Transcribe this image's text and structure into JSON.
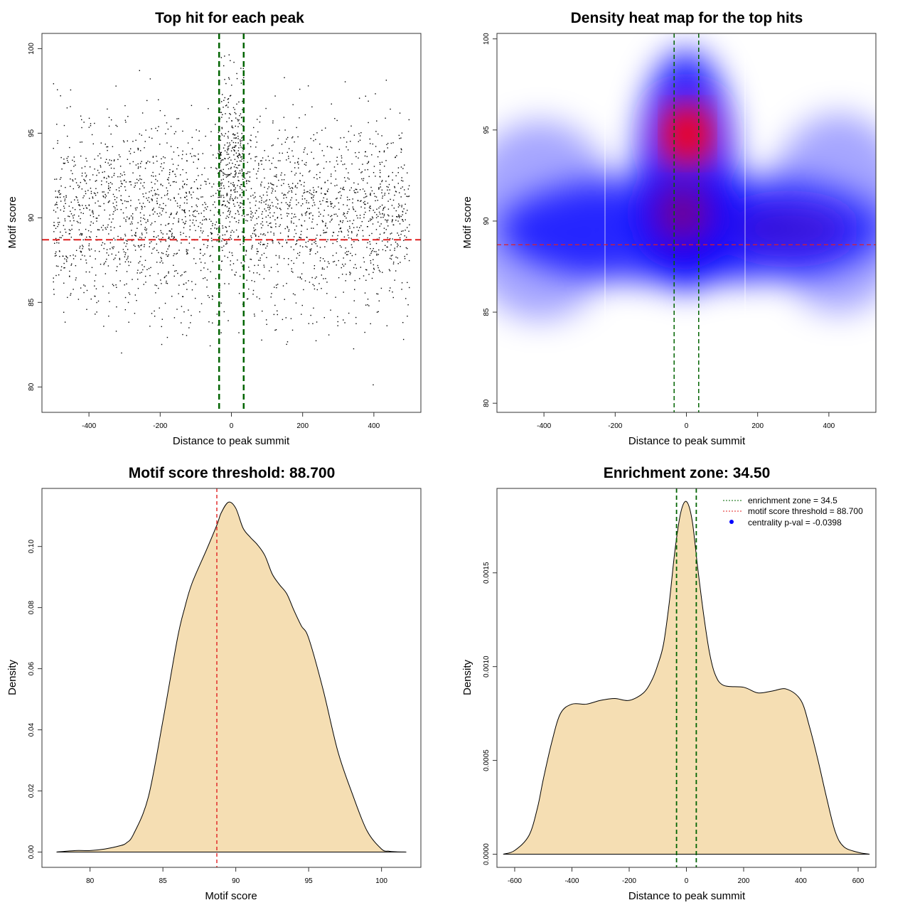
{
  "chart_data": [
    {
      "type": "scatter",
      "title": "Top hit for each peak",
      "xlabel": "Distance to peak summit",
      "ylabel": "Motif score",
      "xlim": [
        -532,
        532
      ],
      "ylim": [
        78.5,
        100.9
      ],
      "xticks": [
        -400,
        -200,
        0,
        200,
        400
      ],
      "yticks": [
        80,
        85,
        90,
        95,
        100
      ],
      "n_points": 2800,
      "points_note_x_range": [
        -500,
        500
      ],
      "points_note_y_range": [
        79,
        100
      ],
      "central_enrichment_x_range": [
        -35,
        35
      ],
      "vlines": [
        -34.5,
        34.5
      ],
      "hline": 88.7,
      "colors": {
        "points": "#000000",
        "vline": "#006400",
        "hline": "#e02020"
      }
    },
    {
      "type": "heatmap",
      "title": "Density heat map for the top hits",
      "xlabel": "Distance to peak summit",
      "ylabel": "Motif score",
      "xlim": [
        -532,
        532
      ],
      "ylim": [
        79.5,
        100.3
      ],
      "xticks": [
        -400,
        -200,
        0,
        200,
        400
      ],
      "yticks": [
        80,
        85,
        90,
        95,
        100
      ],
      "hotspots": [
        {
          "x": 5,
          "y": 94.6,
          "level": "max"
        },
        {
          "x": 0,
          "y": 89.5,
          "level": "high"
        }
      ],
      "vlines": [
        -34.5,
        34.5
      ],
      "hline": 88.7,
      "colors": {
        "low": "#ffffff",
        "mid": "#0000ff",
        "high": "#ff0000",
        "vline": "#006400",
        "hline": "#e02020"
      }
    },
    {
      "type": "area",
      "title": "Motif score threshold: 88.700",
      "xlabel": "Motif score",
      "ylabel": "Density",
      "xlim": [
        76.7,
        102.7
      ],
      "ylim": [
        -0.005,
        0.119
      ],
      "xticks": [
        80,
        85,
        90,
        95,
        100
      ],
      "yticks": [
        0.0,
        0.02,
        0.04,
        0.06,
        0.08,
        0.1
      ],
      "x": [
        77.7,
        79,
        80,
        81,
        82,
        82.5,
        83,
        84,
        85,
        86,
        86.5,
        87,
        88,
        88.7,
        89,
        89.5,
        90,
        90.5,
        91,
        91.5,
        92,
        92.5,
        93,
        93.5,
        94,
        94.5,
        95,
        96,
        97,
        98,
        99,
        100,
        100.5,
        101,
        101.7
      ],
      "values": [
        0.0,
        0.0005,
        0.0005,
        0.001,
        0.002,
        0.003,
        0.006,
        0.018,
        0.043,
        0.07,
        0.08,
        0.088,
        0.099,
        0.107,
        0.111,
        0.1145,
        0.1125,
        0.106,
        0.103,
        0.1005,
        0.097,
        0.091,
        0.0875,
        0.0845,
        0.079,
        0.074,
        0.07,
        0.053,
        0.033,
        0.019,
        0.007,
        0.001,
        0.0003,
        0.0001,
        0.0
      ],
      "vline": 88.7,
      "colors": {
        "fill": "#f5deb3",
        "line": "#000000",
        "vline": "#e02020"
      }
    },
    {
      "type": "area",
      "title": "Enrichment zone: 34.50",
      "xlabel": "Distance to peak summit",
      "ylabel": "Density",
      "xlim": [
        -662,
        662
      ],
      "ylim": [
        -7e-05,
        0.00195
      ],
      "xticks": [
        -600,
        -400,
        -200,
        0,
        200,
        400,
        600
      ],
      "yticks": [
        0.0,
        0.0005,
        0.001,
        0.0015
      ],
      "ytick_labels": [
        "0.0000",
        "0.0005",
        "0.0010",
        "0.0015"
      ],
      "x": [
        -640,
        -600,
        -550,
        -520,
        -500,
        -470,
        -440,
        -400,
        -350,
        -300,
        -250,
        -200,
        -150,
        -120,
        -100,
        -80,
        -60,
        -40,
        -20,
        0,
        20,
        40,
        60,
        80,
        100,
        130,
        200,
        250,
        300,
        350,
        400,
        430,
        460,
        490,
        520,
        550,
        600,
        640
      ],
      "values": [
        0.0,
        2e-05,
        0.0001,
        0.00025,
        0.0004,
        0.0006,
        0.00075,
        0.0008,
        0.0008,
        0.00082,
        0.00083,
        0.00082,
        0.00086,
        0.00093,
        0.00101,
        0.00112,
        0.00134,
        0.00162,
        0.00182,
        0.00188,
        0.00178,
        0.00152,
        0.00128,
        0.00108,
        0.00096,
        0.0009,
        0.00089,
        0.00086,
        0.00087,
        0.00088,
        0.00082,
        0.00068,
        0.0005,
        0.0003,
        0.00012,
        4e-05,
        1e-05,
        0.0
      ],
      "vlines": [
        -34.5,
        34.5
      ],
      "legend": {
        "position": "top-right",
        "entries": [
          {
            "label": "enrichment zone = 34.5",
            "color": "#006400",
            "style": "dotted-line"
          },
          {
            "label": "motif score threshold = 88.700",
            "color": "#e02020",
            "style": "dotted-line"
          },
          {
            "label": "centrality p-val = -0.0398",
            "color": "#0000ff",
            "style": "point"
          }
        ]
      },
      "colors": {
        "fill": "#f5deb3",
        "line": "#000000",
        "vline": "#006400"
      }
    }
  ]
}
